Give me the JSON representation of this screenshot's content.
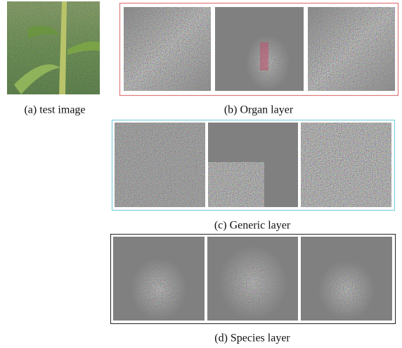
{
  "captions": [
    "(a) test image",
    "(b) Organ layer",
    "(c) Generic layer",
    "(d) Species layer"
  ]
}
